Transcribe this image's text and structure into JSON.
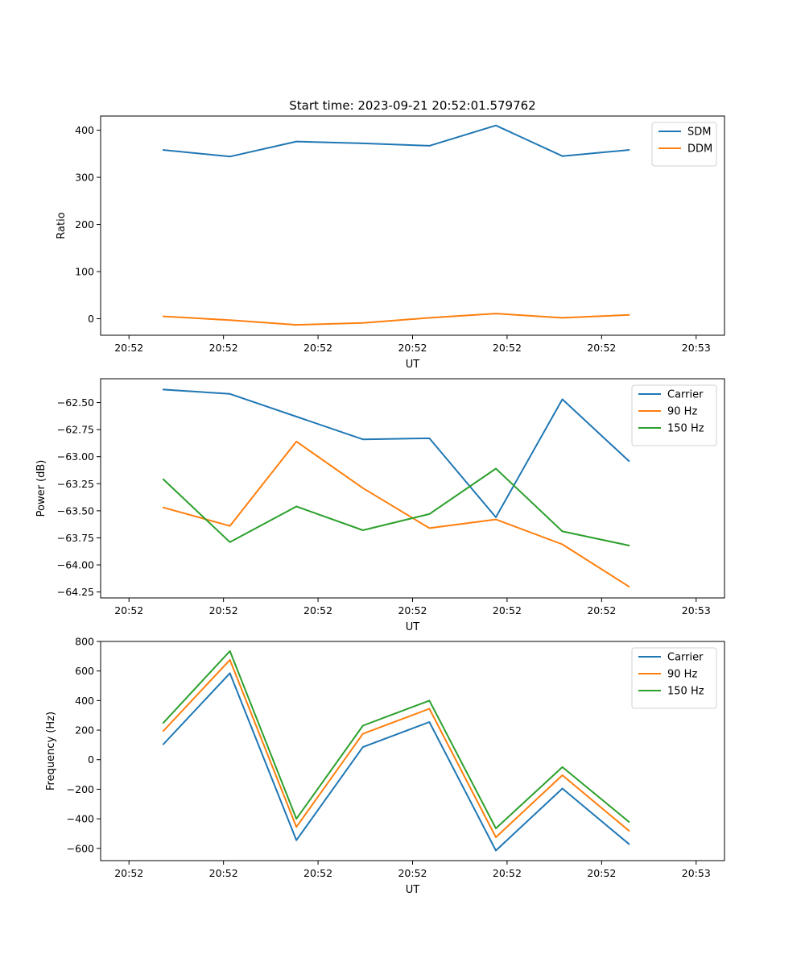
{
  "chart_data": [
    {
      "type": "line",
      "title": "Start time: 2023-09-21 20:52:01.579762",
      "xlabel": "UT",
      "ylabel": "Ratio",
      "x_tick_labels": [
        "20:52",
        "20:52",
        "20:52",
        "20:52",
        "20:52",
        "20:52",
        "20:53"
      ],
      "x": [
        0.5,
        1.2,
        1.9,
        2.6,
        3.3,
        4.0,
        4.7,
        5.4
      ],
      "xlim": [
        -0.15,
        6.0
      ],
      "ylim": [
        -35,
        430
      ],
      "y_ticks": [
        0,
        100,
        200,
        300,
        400
      ],
      "y_tick_labels": [
        "0",
        "100",
        "200",
        "300",
        "400"
      ],
      "legend_position": "top-right",
      "series": [
        {
          "name": "SDM",
          "color": "#1f77b4",
          "values": [
            358,
            344,
            376,
            372,
            367,
            410,
            345,
            358
          ]
        },
        {
          "name": "DDM",
          "color": "#ff7f0e",
          "values": [
            5,
            -3,
            -13,
            -9,
            2,
            11,
            2,
            8
          ]
        }
      ]
    },
    {
      "type": "line",
      "title": "",
      "xlabel": "UT",
      "ylabel": "Power (dB)",
      "x_tick_labels": [
        "20:52",
        "20:52",
        "20:52",
        "20:52",
        "20:52",
        "20:52",
        "20:53"
      ],
      "x": [
        0.5,
        1.2,
        1.9,
        2.6,
        3.3,
        4.0,
        4.7,
        5.4
      ],
      "xlim": [
        -0.15,
        6.0
      ],
      "ylim": [
        -64.305,
        -62.28
      ],
      "y_ticks": [
        -64.25,
        -64.0,
        -63.75,
        -63.5,
        -63.25,
        -63.0,
        -62.75,
        -62.5
      ],
      "y_tick_labels": [
        "−64.25",
        "−64.00",
        "−63.75",
        "−63.50",
        "−63.25",
        "−63.00",
        "−62.75",
        "−62.50"
      ],
      "legend_position": "top-right",
      "series": [
        {
          "name": "Carrier",
          "color": "#1f77b4",
          "values": [
            -62.38,
            -62.42,
            -62.63,
            -62.84,
            -62.83,
            -63.56,
            -62.47,
            -63.04
          ]
        },
        {
          "name": "90 Hz",
          "color": "#ff7f0e",
          "values": [
            -63.47,
            -63.64,
            -62.86,
            -63.29,
            -63.66,
            -63.58,
            -63.81,
            -64.2
          ]
        },
        {
          "name": "150 Hz",
          "color": "#2ca02c",
          "values": [
            -63.21,
            -63.79,
            -63.46,
            -63.68,
            -63.53,
            -63.11,
            -63.69,
            -63.82
          ]
        }
      ]
    },
    {
      "type": "line",
      "title": "",
      "xlabel": "UT",
      "ylabel": "Frequency (Hz)",
      "x_tick_labels": [
        "20:52",
        "20:52",
        "20:52",
        "20:52",
        "20:52",
        "20:52",
        "20:53"
      ],
      "x": [
        0.5,
        1.2,
        1.9,
        2.6,
        3.3,
        4.0,
        4.7,
        5.4
      ],
      "xlim": [
        -0.15,
        6.0
      ],
      "ylim": [
        -683,
        800
      ],
      "y_ticks": [
        -600,
        -400,
        -200,
        0,
        200,
        400,
        600,
        800
      ],
      "y_tick_labels": [
        "−600",
        "−400",
        "−200",
        "0",
        "200",
        "400",
        "600",
        "800"
      ],
      "legend_position": "top-right",
      "series": [
        {
          "name": "Carrier",
          "color": "#1f77b4",
          "values": [
            105,
            585,
            -545,
            85,
            255,
            -615,
            -195,
            -570
          ]
        },
        {
          "name": "90 Hz",
          "color": "#ff7f0e",
          "values": [
            195,
            675,
            -455,
            175,
            345,
            -525,
            -105,
            -480
          ]
        },
        {
          "name": "150 Hz",
          "color": "#2ca02c",
          "values": [
            250,
            735,
            -400,
            230,
            400,
            -465,
            -50,
            -420
          ]
        }
      ]
    }
  ]
}
